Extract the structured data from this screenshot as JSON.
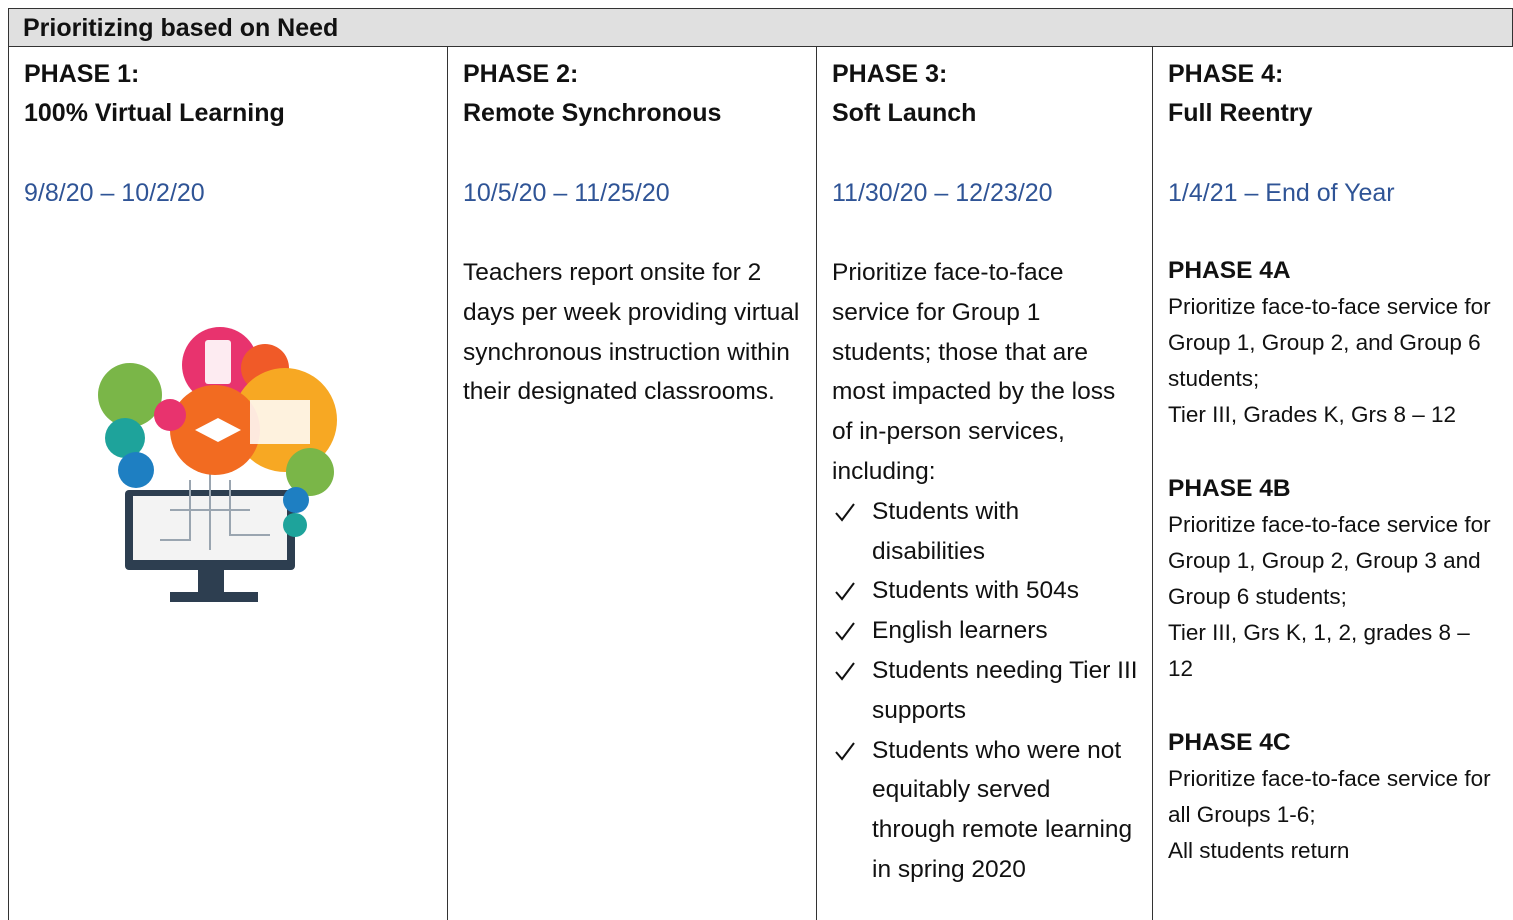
{
  "header": {
    "title": "Prioritizing based on Need"
  },
  "columns": [
    {
      "phase": "PHASE 1:",
      "name": "100% Virtual Learning",
      "dates": "9/8/20 – 10/2/20"
    },
    {
      "phase": "PHASE 2:",
      "name": "Remote Synchronous",
      "dates": "10/5/20 – 11/25/20",
      "body": "Teachers report onsite for 2 days per week providing virtual synchronous instruction within their designated classrooms."
    },
    {
      "phase": "PHASE 3:",
      "name": "Soft Launch",
      "dates": "11/30/20 – 12/23/20",
      "body": "Prioritize face-to-face service for Group 1 students; those that are most impacted by the loss of in-person services, including:",
      "checklist": [
        "Students with disabilities",
        "Students with 504s",
        "English learners",
        "Students needing Tier III supports",
        "Students who were not equitably served through remote learning in spring 2020"
      ]
    },
    {
      "phase": "PHASE 4:",
      "name": "Full Reentry",
      "dates": "1/4/21 – End of Year",
      "subphases": [
        {
          "title": "PHASE 4A",
          "lines": [
            "Prioritize face-to-face service for Group 1, Group 2, and Group 6 students;",
            "Tier III, Grades K, Grs 8 – 12"
          ]
        },
        {
          "title": "PHASE 4B",
          "lines": [
            "Prioritize face-to-face service for Group 1, Group 2, Group 3 and Group 6 students;",
            "Tier III, Grs K, 1, 2, grades 8 – 12"
          ]
        },
        {
          "title": "PHASE 4C",
          "lines": [
            "Prioritize face-to-face service for all Groups 1-6;",
            "All students return"
          ]
        }
      ]
    }
  ]
}
